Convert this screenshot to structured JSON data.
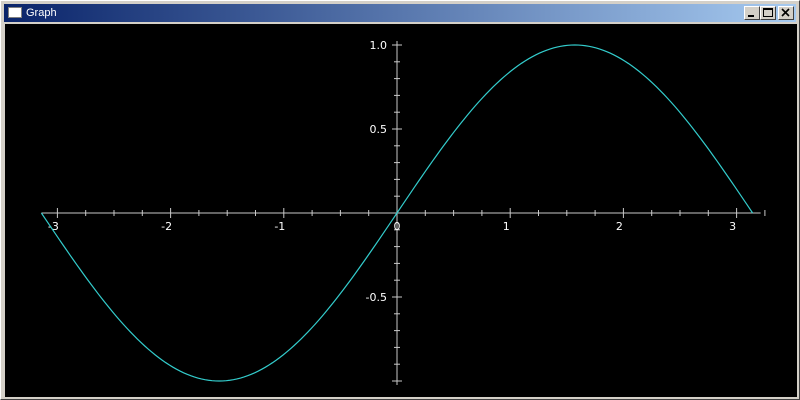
{
  "window": {
    "title": "Graph"
  },
  "colors": {
    "background": "#000000",
    "axis": "#c8c8c8",
    "curve": "#33cccc",
    "titlebar_start": "#0a246a",
    "titlebar_end": "#a6caf0"
  },
  "chart_data": {
    "type": "line",
    "function": "sin(x)",
    "xlim": [
      -3.14159,
      3.14159
    ],
    "ylim": [
      -1.0,
      1.0
    ],
    "x_ticks": [
      {
        "value": -3,
        "label": "-3"
      },
      {
        "value": -2,
        "label": "-2"
      },
      {
        "value": -1,
        "label": "-1"
      },
      {
        "value": 0,
        "label": "0"
      },
      {
        "value": 1,
        "label": "1"
      },
      {
        "value": 2,
        "label": "2"
      },
      {
        "value": 3,
        "label": "3"
      }
    ],
    "y_ticks": [
      {
        "value": 1.0,
        "label": "1.0"
      },
      {
        "value": 0.5,
        "label": "0.5"
      },
      {
        "value": -0.5,
        "label": "-0.5"
      }
    ],
    "minor_step_x": 0.25,
    "minor_step_y": 0.1,
    "grid": false,
    "samples": 200
  }
}
